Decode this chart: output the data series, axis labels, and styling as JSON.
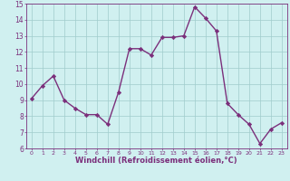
{
  "x": [
    0,
    1,
    2,
    3,
    4,
    5,
    6,
    7,
    8,
    9,
    10,
    11,
    12,
    13,
    14,
    15,
    16,
    17,
    18,
    19,
    20,
    21,
    22,
    23
  ],
  "y": [
    9.1,
    9.9,
    10.5,
    9.0,
    8.5,
    8.1,
    8.1,
    7.5,
    9.5,
    12.2,
    12.2,
    11.8,
    12.9,
    12.9,
    13.0,
    14.8,
    14.1,
    13.3,
    8.8,
    8.1,
    7.5,
    6.3,
    7.2,
    7.6
  ],
  "line_color": "#7b2f7b",
  "marker": "D",
  "markersize": 2.2,
  "linewidth": 1.0,
  "xlabel": "Windchill (Refroidissement éolien,°C)",
  "xlabel_fontsize": 6.0,
  "background_color": "#d0f0f0",
  "grid_color": "#a0cccc",
  "tick_color": "#7b2f7b",
  "label_color": "#7b2f7b",
  "ylim": [
    6,
    15
  ],
  "xlim": [
    -0.5,
    23.5
  ],
  "yticks": [
    6,
    7,
    8,
    9,
    10,
    11,
    12,
    13,
    14,
    15
  ],
  "xticks": [
    0,
    1,
    2,
    3,
    4,
    5,
    6,
    7,
    8,
    9,
    10,
    11,
    12,
    13,
    14,
    15,
    16,
    17,
    18,
    19,
    20,
    21,
    22,
    23
  ]
}
